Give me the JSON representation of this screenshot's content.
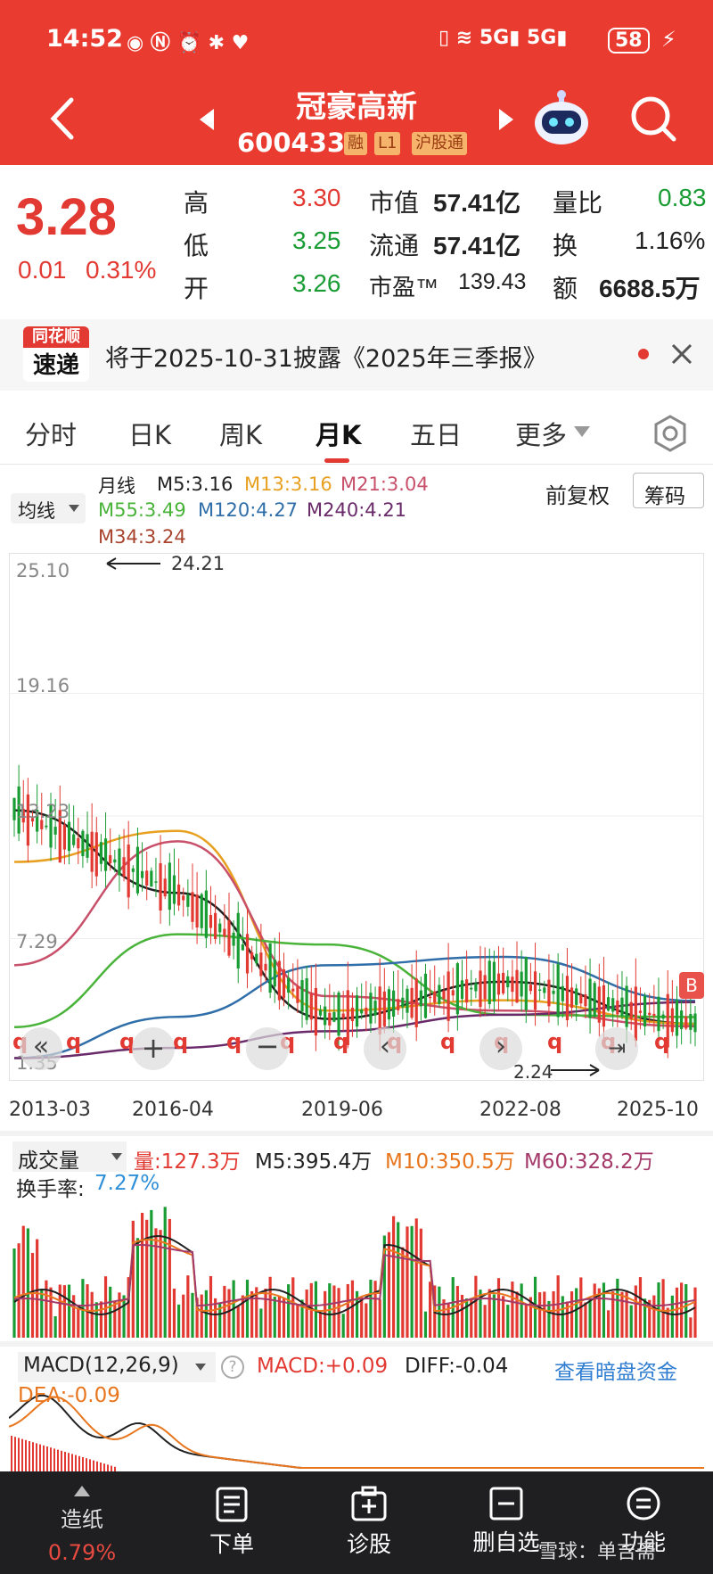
{
  "status_bar": {
    "time": "14:52",
    "battery": "58"
  },
  "header": {
    "stock_name": "冠豪高新",
    "stock_code": "600433",
    "tags": [
      "融",
      "L1",
      "沪股通"
    ]
  },
  "quote": {
    "price": "3.28",
    "change": "0.01",
    "change_pct": "0.31%",
    "rows": [
      {
        "k1": "高",
        "v1": "3.30",
        "k2": "市值",
        "v2": "57.41亿",
        "k3": "量比",
        "v3": "0.83"
      },
      {
        "k1": "低",
        "v1": "3.25",
        "k2": "流通",
        "v2": "57.41亿",
        "k3": "换",
        "v3": "1.16%"
      },
      {
        "k1": "开",
        "v1": "3.26",
        "k2": "市盈™",
        "v2": "139.43",
        "k3": "额",
        "v3": "6688.5万"
      }
    ]
  },
  "notice": {
    "logo_top": "同花顺",
    "logo_bottom": "速递",
    "text": "将于2025-10-31披露《2025年三季报》"
  },
  "tabs": [
    "分时",
    "日K",
    "周K",
    "月K",
    "五日",
    "更多"
  ],
  "active_tab": "月K",
  "toolbar": {
    "ma_selector": "均线",
    "period": "月线",
    "ma_values": [
      {
        "label": "M5:3.16",
        "color": "#222222"
      },
      {
        "label": "M13:3.16",
        "color": "#e8a020"
      },
      {
        "label": "M21:3.04",
        "color": "#c8506a"
      },
      {
        "label": "M55:3.49",
        "color": "#49b33a"
      },
      {
        "label": "M120:4.27",
        "color": "#2f6ea8"
      },
      {
        "label": "M240:4.21",
        "color": "#6a2a6a"
      },
      {
        "label": "M34:3.24",
        "color": "#a8442e"
      }
    ],
    "adjust_label": "前复权",
    "chips_button": "筹码"
  },
  "main_chart": {
    "y_labels": [
      "25.10",
      "19.16",
      "13.23",
      "7.29",
      "1.35"
    ],
    "x_labels": [
      "2013-03",
      "2016-04",
      "2019-06",
      "2022-08",
      "2025-10"
    ],
    "high_note": "24.21",
    "low_note": "2.24",
    "b_marker": "B",
    "q_marker": "q"
  },
  "chart_data": {
    "type": "bar",
    "title": "月K",
    "ylim": [
      1.35,
      25.1
    ],
    "x": [
      "2013-03",
      "2016-04",
      "2019-06",
      "2022-08",
      "2025-10"
    ],
    "series": [
      {
        "name": "M5",
        "values": [
          13.5,
          9.5,
          3.4,
          5.2,
          3.16
        ]
      },
      {
        "name": "M13",
        "values": [
          11.0,
          12.5,
          3.8,
          4.3,
          3.16
        ]
      },
      {
        "name": "M21",
        "values": [
          6.0,
          12.0,
          4.5,
          3.8,
          3.04
        ]
      },
      {
        "name": "M55",
        "values": [
          3.0,
          7.5,
          7.0,
          3.6,
          3.49
        ]
      },
      {
        "name": "M120",
        "values": [
          1.5,
          3.5,
          6.0,
          6.4,
          4.27
        ]
      },
      {
        "name": "M240",
        "values": [
          1.5,
          2.0,
          2.8,
          3.6,
          4.21
        ]
      }
    ]
  },
  "volume": {
    "selector": "成交量",
    "vol": "量:127.3万",
    "m5": "M5:395.4万",
    "m10": "M10:350.5万",
    "m60": "M60:328.2万",
    "turnover_label": "换手率:",
    "turnover_value": "7.27%"
  },
  "macd": {
    "selector": "MACD(12,26,9)",
    "help": "?",
    "macd": "MACD:+0.09",
    "diff": "DIFF:-0.04",
    "dea": "DEA:-0.09",
    "link": "查看暗盘资金"
  },
  "bottom_nav": [
    {
      "label": "造纸",
      "sub": "0.79%"
    },
    {
      "label": "下单",
      "sub": ""
    },
    {
      "label": "诊股",
      "sub": ""
    },
    {
      "label": "删自选",
      "sub": ""
    },
    {
      "label": "功能",
      "sub": ""
    }
  ],
  "watermark": "雪球：单吉斋"
}
